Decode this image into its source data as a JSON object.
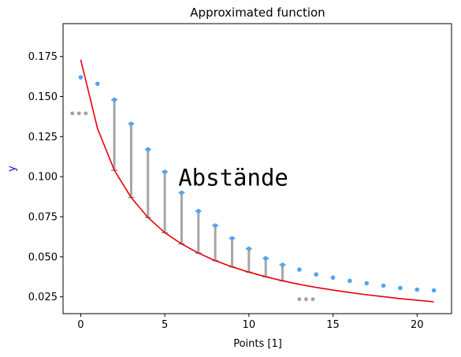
{
  "chart_data": {
    "type": "scatter",
    "title": "Approximated function",
    "xlabel": "Points [1]",
    "ylabel": "y",
    "xlim": [
      -1.05,
      22.05
    ],
    "ylim": [
      0.0145,
      0.1955
    ],
    "xticks": [
      0,
      5,
      10,
      15,
      20
    ],
    "yticks": [
      0.025,
      0.05,
      0.075,
      0.1,
      0.125,
      0.15,
      0.175
    ],
    "grid": false,
    "colors": {
      "measured": "#4da6f5",
      "fit": "#e8000b",
      "distance": "#a6a6a6",
      "outlier": "#a0a0a0",
      "xlabel": "#000000",
      "ylabel": "#0000ff"
    },
    "annotation": {
      "text": "Abstände",
      "x": 5.8,
      "y": 0.0945
    },
    "fit_line": {
      "x": [
        0,
        1,
        2,
        3,
        4,
        5,
        6,
        7,
        8,
        9,
        10,
        11,
        12,
        13,
        14,
        15,
        16,
        17,
        18,
        19,
        20,
        21
      ],
      "y": [
        0.173,
        0.13,
        0.104,
        0.087,
        0.0745,
        0.065,
        0.058,
        0.0523,
        0.0476,
        0.0437,
        0.0404,
        0.0375,
        0.035,
        0.0328,
        0.0309,
        0.0292,
        0.0277,
        0.0263,
        0.0251,
        0.0239,
        0.0229,
        0.0219
      ]
    },
    "measured_points": {
      "x": [
        0,
        1,
        2,
        3,
        4,
        5,
        6,
        7,
        8,
        9,
        10,
        11,
        12,
        13,
        14,
        15,
        16,
        17,
        18,
        19,
        20,
        21
      ],
      "y": [
        0.162,
        0.158,
        0.148,
        0.133,
        0.117,
        0.103,
        0.09,
        0.0785,
        0.0695,
        0.0615,
        0.055,
        0.049,
        0.045,
        0.042,
        0.039,
        0.037,
        0.035,
        0.0335,
        0.032,
        0.0305,
        0.0295,
        0.029
      ]
    },
    "distance_segments": {
      "x": [
        2,
        3,
        4,
        5,
        6,
        7,
        8,
        9,
        10,
        11,
        12
      ],
      "y_top": [
        0.148,
        0.133,
        0.117,
        0.103,
        0.09,
        0.0785,
        0.0695,
        0.0615,
        0.055,
        0.049,
        0.045
      ],
      "y_bottom": [
        0.104,
        0.087,
        0.0745,
        0.065,
        0.058,
        0.0523,
        0.0476,
        0.0437,
        0.0404,
        0.0375,
        0.035
      ]
    },
    "outlier_points": {
      "x": [
        -0.5,
        -0.1,
        0.3,
        13,
        13.4,
        13.8
      ],
      "y": [
        0.1395,
        0.1395,
        0.1395,
        0.0235,
        0.0235,
        0.0235
      ]
    }
  }
}
